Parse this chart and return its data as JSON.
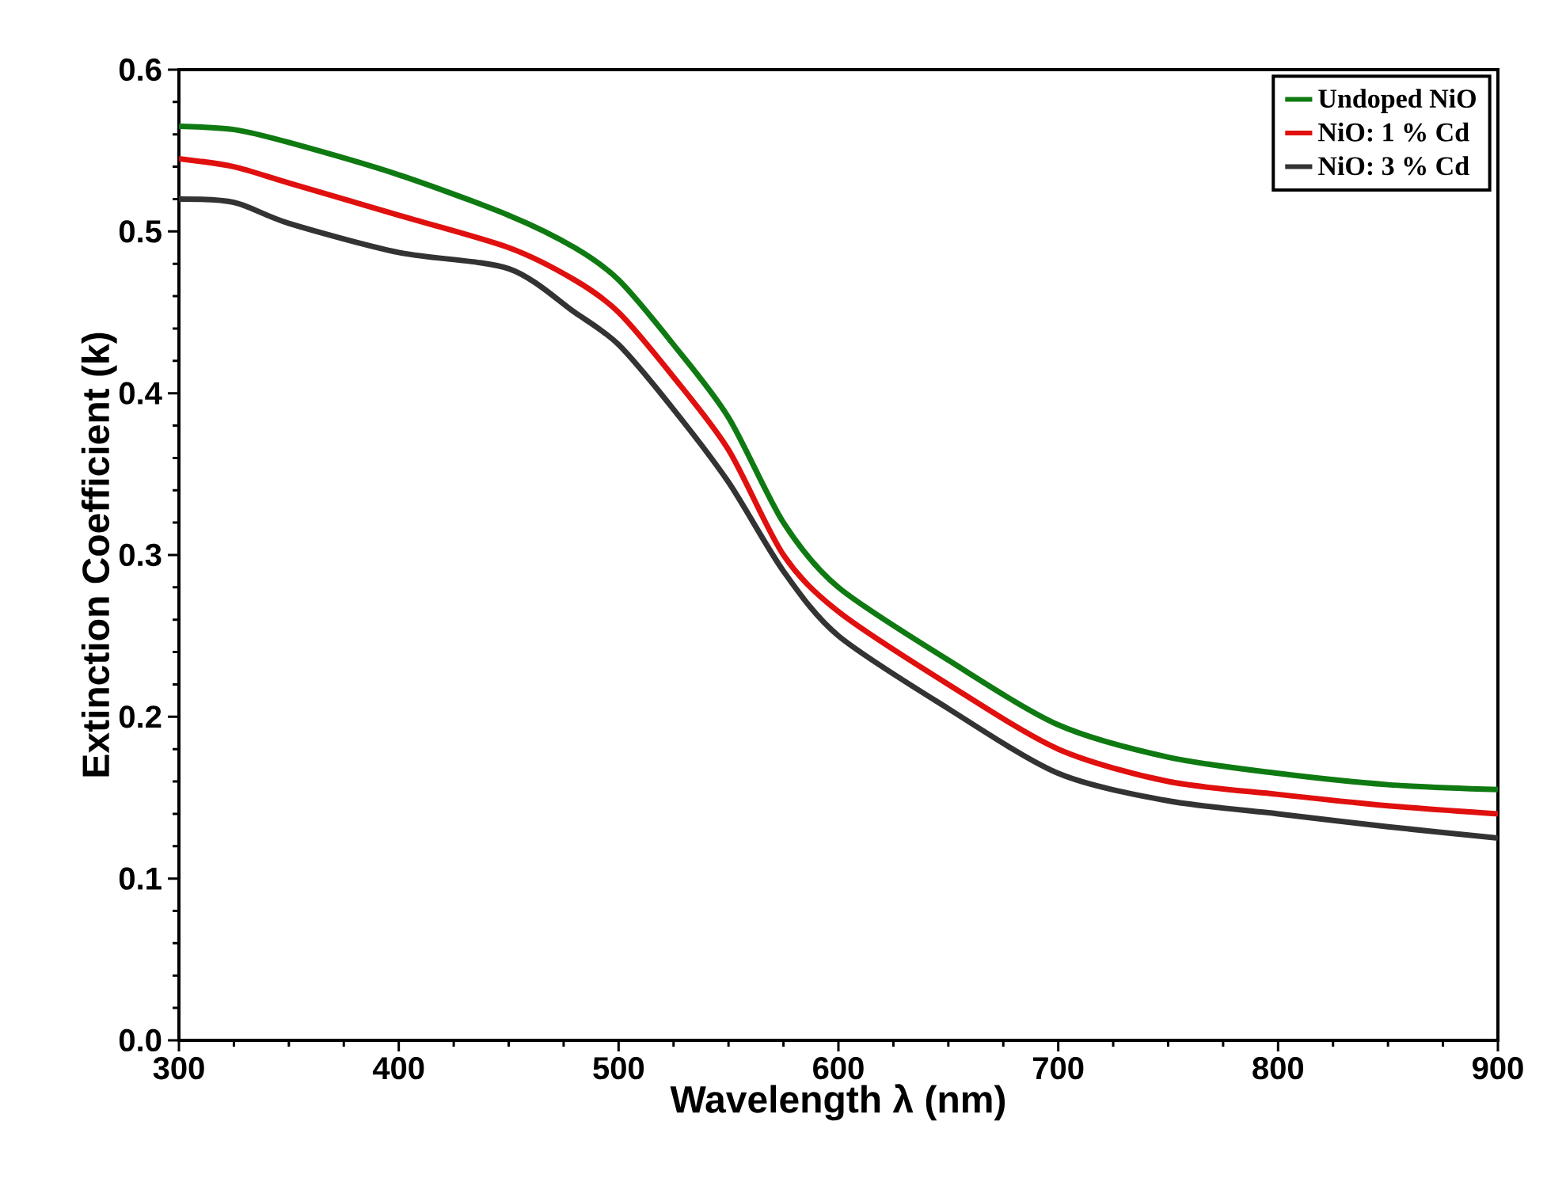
{
  "chart_data": {
    "type": "line",
    "xlabel": "Wavelength λ (nm)",
    "ylabel": "Extinction Coefficient (k)",
    "xlim": [
      300,
      900
    ],
    "xticks": [
      300,
      400,
      500,
      600,
      700,
      800,
      900
    ],
    "ylim": [
      0,
      0.6
    ],
    "yticks": [
      {
        "value": 0,
        "label": "0.0"
      },
      0.1,
      0.2,
      0.3,
      0.4,
      0.5,
      0.6
    ],
    "x": [
      300,
      325,
      350,
      400,
      450,
      480,
      500,
      525,
      550,
      575,
      600,
      650,
      700,
      750,
      800,
      850,
      900
    ],
    "legend": "top right",
    "grid": false,
    "marker": "none",
    "line_style": "solid",
    "series": [
      {
        "name": "Undoped NiO",
        "color": "#0f7a12",
        "values": [
          0.565,
          0.563,
          0.555,
          0.535,
          0.51,
          0.49,
          0.47,
          0.43,
          0.385,
          0.32,
          0.28,
          0.235,
          0.195,
          0.175,
          0.165,
          0.158,
          0.155
        ]
      },
      {
        "name": "NiO: 1 % Cd",
        "color": "#e0100f",
        "values": [
          0.545,
          0.54,
          0.53,
          0.51,
          0.49,
          0.47,
          0.45,
          0.41,
          0.365,
          0.3,
          0.265,
          0.22,
          0.18,
          0.16,
          0.152,
          0.145,
          0.14
        ]
      },
      {
        "name": "NiO: 3 % Cd",
        "color": "#333333",
        "values": [
          0.52,
          0.518,
          0.505,
          0.487,
          0.477,
          0.45,
          0.43,
          0.39,
          0.345,
          0.29,
          0.25,
          0.205,
          0.165,
          0.148,
          0.14,
          0.132,
          0.125
        ]
      }
    ]
  }
}
